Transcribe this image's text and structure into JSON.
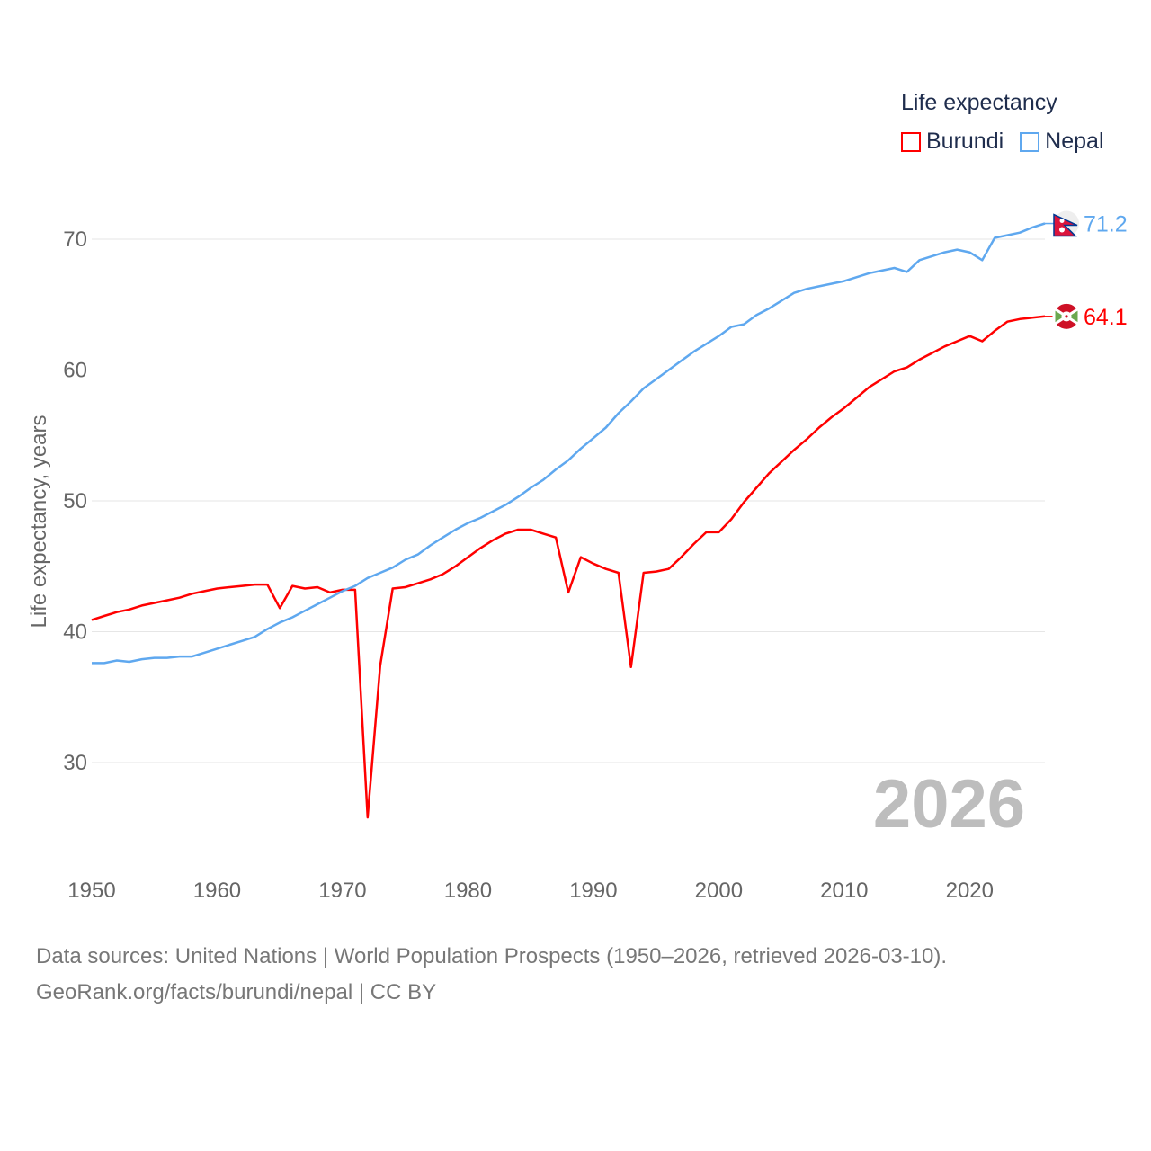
{
  "chart_data": {
    "type": "line",
    "title": "",
    "ylabel": "Life expectancy, years",
    "xlabel": "",
    "xlim": [
      1950,
      2026
    ],
    "ylim": [
      23,
      75
    ],
    "yticks": [
      30,
      40,
      50,
      60,
      70
    ],
    "xticks": [
      1950,
      1960,
      1970,
      1980,
      1990,
      2000,
      2010,
      2020
    ],
    "grid": true,
    "legend_title": "Life expectancy",
    "legend_position": "top-right",
    "year_watermark": "2026",
    "series": [
      {
        "name": "Burundi",
        "color": "#ff0000",
        "end_label": "64.1",
        "values": [
          40.9,
          41.2,
          41.5,
          41.7,
          42.0,
          42.2,
          42.4,
          42.6,
          42.9,
          43.1,
          43.3,
          43.4,
          43.5,
          43.6,
          43.6,
          41.8,
          43.5,
          43.3,
          43.4,
          43.0,
          43.2,
          43.2,
          25.8,
          37.4,
          43.3,
          43.4,
          43.7,
          44.0,
          44.4,
          45.0,
          45.7,
          46.4,
          47.0,
          47.5,
          47.8,
          47.8,
          47.5,
          47.2,
          43.0,
          45.7,
          45.2,
          44.8,
          44.5,
          37.3,
          44.5,
          44.6,
          44.8,
          45.7,
          46.7,
          47.6,
          47.6,
          48.6,
          49.9,
          51.0,
          52.1,
          53.0,
          53.9,
          54.7,
          55.6,
          56.4,
          57.1,
          57.9,
          58.7,
          59.3,
          59.9,
          60.2,
          60.8,
          61.3,
          61.8,
          62.2,
          62.6,
          62.2,
          63.0,
          63.7,
          63.9,
          64.0,
          64.1
        ]
      },
      {
        "name": "Nepal",
        "color": "#5fa8ef",
        "end_label": "71.2",
        "values": [
          37.6,
          37.6,
          37.8,
          37.7,
          37.9,
          38.0,
          38.0,
          38.1,
          38.1,
          38.4,
          38.7,
          39.0,
          39.3,
          39.6,
          40.2,
          40.7,
          41.1,
          41.6,
          42.1,
          42.6,
          43.1,
          43.5,
          44.1,
          44.5,
          44.9,
          45.5,
          45.9,
          46.6,
          47.2,
          47.8,
          48.3,
          48.7,
          49.2,
          49.7,
          50.3,
          51.0,
          51.6,
          52.4,
          53.1,
          54.0,
          54.8,
          55.6,
          56.7,
          57.6,
          58.6,
          59.3,
          60.0,
          60.7,
          61.4,
          62.0,
          62.6,
          63.3,
          63.5,
          64.2,
          64.7,
          65.3,
          65.9,
          66.2,
          66.4,
          66.6,
          66.8,
          67.1,
          67.4,
          67.6,
          67.8,
          67.5,
          68.4,
          68.7,
          69.0,
          69.2,
          69.0,
          68.4,
          70.1,
          70.3,
          70.5,
          70.9,
          71.2
        ]
      }
    ]
  },
  "footer": {
    "line1": "Data sources: United Nations | World Population Prospects (1950–2026, retrieved 2026-03-10).",
    "line2": "GeoRank.org/facts/burundi/nepal | CC BY"
  }
}
